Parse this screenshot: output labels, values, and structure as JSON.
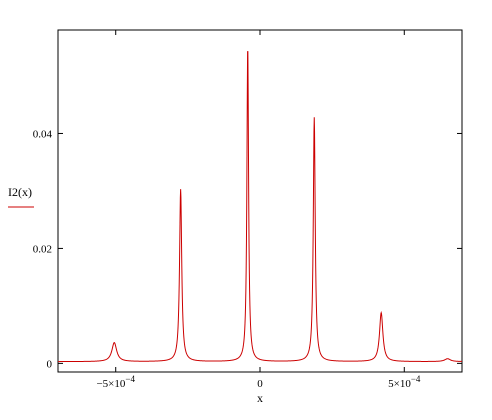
{
  "chart_data": {
    "type": "line",
    "xlabel": "x",
    "ylabel": "",
    "xlim": [
      -0.0007,
      0.0007
    ],
    "ylim": [
      -0.0015,
      0.058
    ],
    "grid": false,
    "legend_position": "left",
    "x_ticks": [
      {
        "value": -0.0005,
        "label": "−5×10",
        "exp": "−4"
      },
      {
        "value": 0,
        "label": "0",
        "exp": ""
      },
      {
        "value": 0.0005,
        "label": "5×10",
        "exp": "−4"
      }
    ],
    "y_ticks": [
      {
        "value": 0,
        "label": "0"
      },
      {
        "value": 0.02,
        "label": "0.02"
      },
      {
        "value": 0.04,
        "label": "0.04"
      }
    ],
    "series": [
      {
        "name": "I2(x)",
        "color": "#cc0000",
        "baseline": 0.0003,
        "peaks": [
          {
            "x": -0.000505,
            "height": 0.0033,
            "width": 1e-05
          },
          {
            "x": -0.000275,
            "height": 0.03,
            "width": 4.5e-06
          },
          {
            "x": -4.25e-05,
            "height": 0.055,
            "width": 3.5e-06
          },
          {
            "x": 0.000188,
            "height": 0.0425,
            "width": 4e-06
          },
          {
            "x": 0.00042,
            "height": 0.0085,
            "width": 7e-06
          },
          {
            "x": 0.00065,
            "height": 0.0005,
            "width": 1.2e-05
          }
        ]
      }
    ]
  }
}
